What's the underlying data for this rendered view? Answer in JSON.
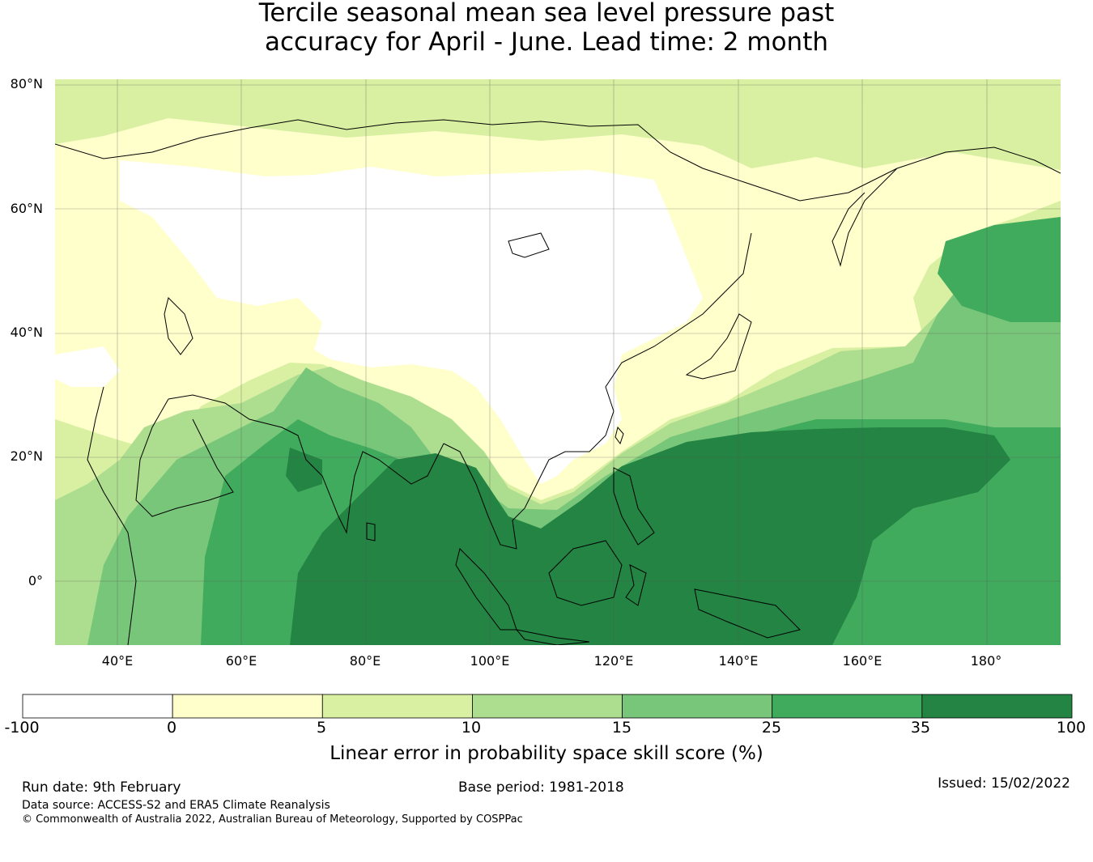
{
  "title": {
    "line1": "Tercile seasonal mean sea level pressure past",
    "line2": "accuracy for April - June. Lead time: 2 month"
  },
  "map": {
    "lat_labels": [
      "80°N",
      "60°N",
      "40°N",
      "20°N",
      "0°"
    ],
    "lon_labels": [
      "40°E",
      "60°E",
      "80°E",
      "100°E",
      "120°E",
      "140°E",
      "160°E",
      "180°"
    ],
    "lon_range": [
      30,
      192
    ],
    "lat_range": [
      -10,
      81
    ]
  },
  "colorbar": {
    "bins": [
      "-100",
      "0",
      "5",
      "10",
      "15",
      "25",
      "35",
      "100"
    ],
    "colors": [
      "#ffffff",
      "#ffffcc",
      "#d9f0a3",
      "#addd8e",
      "#78c679",
      "#41ab5d",
      "#238443"
    ],
    "label": "Linear error in probability space skill score (%)"
  },
  "footer": {
    "run_date": "Run date: 9th February",
    "base_period": "Base period: 1981-2018",
    "issued": "Issued: 15/02/2022",
    "data_source": "Data source: ACCESS-S2 and ERA5 Climate Reanalysis",
    "copyright": "© Commonwealth of Australia 2022, Australian Bureau of Meteorology, Supported by COSPPac"
  }
}
